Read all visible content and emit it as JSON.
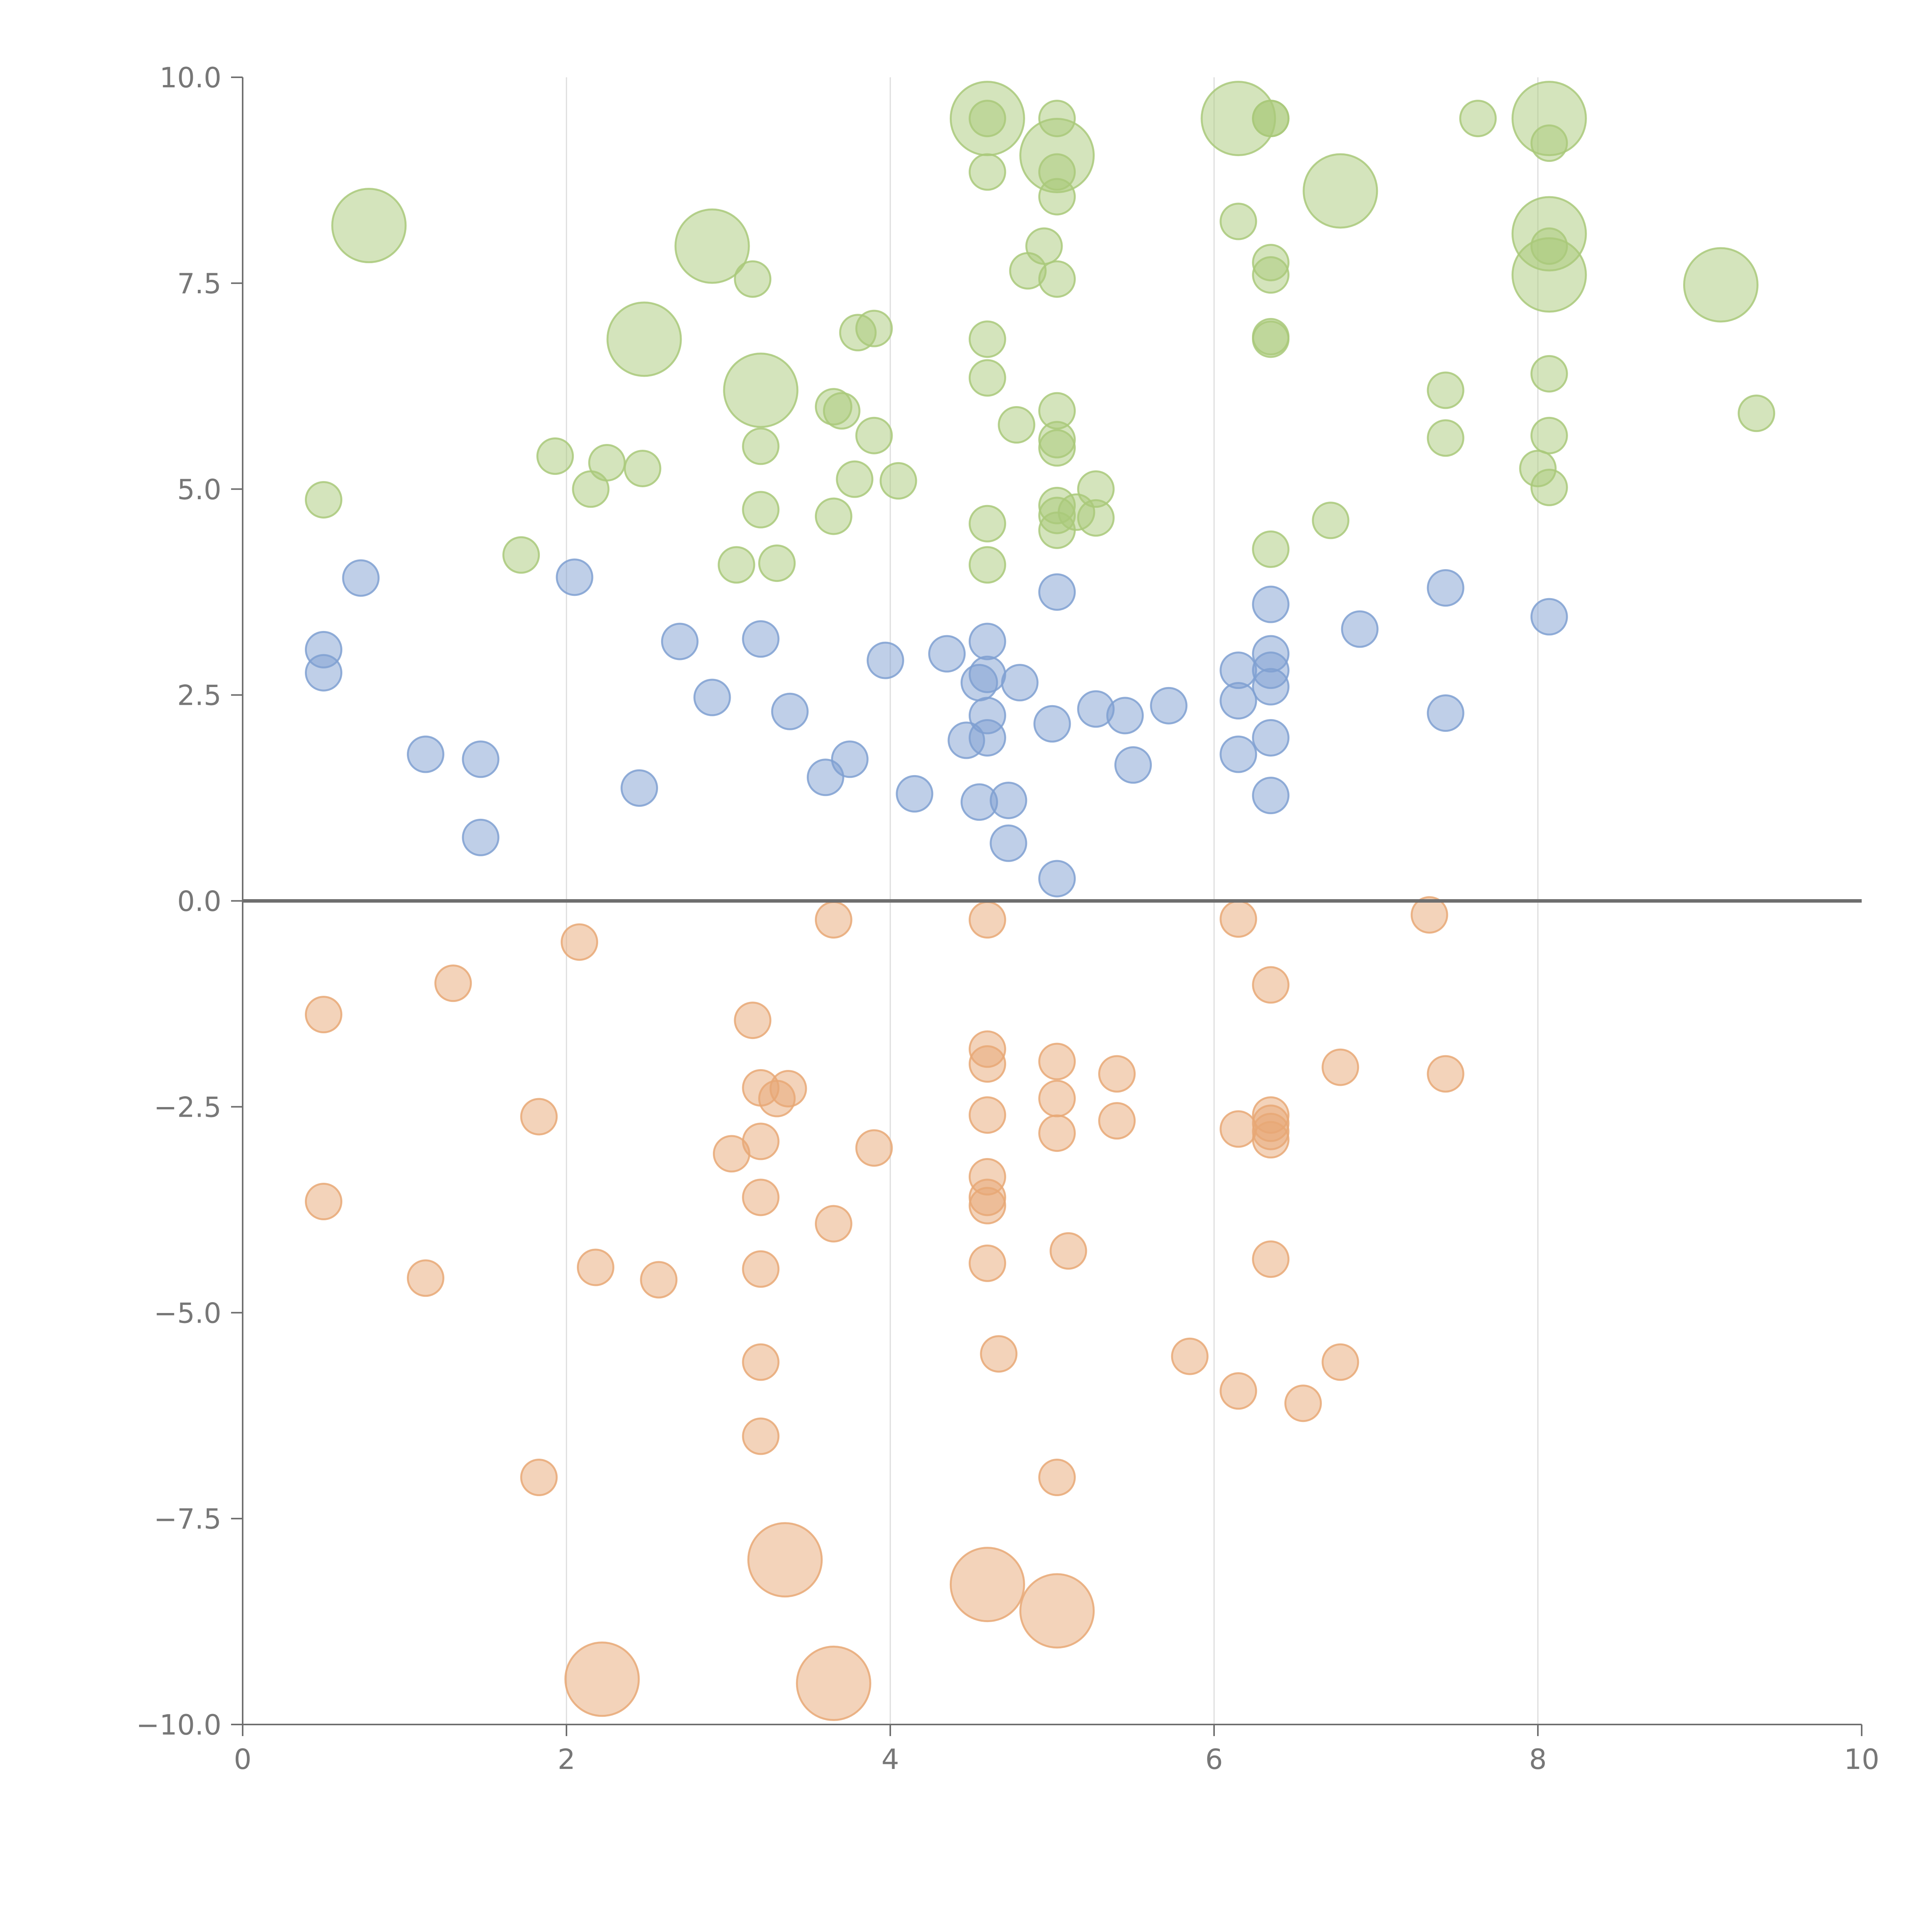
{
  "chart_data": {
    "type": "scatter",
    "title": "",
    "xlabel": "",
    "ylabel": "",
    "xlim": [
      0,
      10
    ],
    "ylim": [
      -10,
      10
    ],
    "x_ticks": [
      "0",
      "2",
      "4",
      "6",
      "8",
      "10"
    ],
    "y_ticks": [
      "10.0",
      "7.5",
      "5.0",
      "2.5",
      "0.0",
      "−2.5",
      "−5.0",
      "−7.5",
      "−10.0"
    ],
    "grid": "vertical",
    "legend": "none",
    "colors": {
      "top": "#a9c97a",
      "middle": "#7fa0d1",
      "bottom": "#e8a876",
      "axis": "#6e6e6e",
      "grid": "#dddddd"
    },
    "series": [
      {
        "group": "top",
        "points": [
          [
            0.78,
            8.2,
            "large"
          ],
          [
            2.9,
            7.95,
            "large"
          ],
          [
            2.48,
            6.82,
            "large"
          ],
          [
            3.2,
            6.2,
            "large"
          ],
          [
            4.6,
            9.5,
            "large"
          ],
          [
            5.03,
            9.05,
            "large"
          ],
          [
            6.15,
            9.5,
            "large"
          ],
          [
            6.78,
            8.62,
            "large"
          ],
          [
            8.07,
            9.5,
            "large"
          ],
          [
            8.07,
            8.1,
            "large"
          ],
          [
            8.07,
            7.6,
            "large"
          ],
          [
            9.13,
            7.48,
            "large"
          ],
          [
            4.6,
            9.5,
            "small"
          ],
          [
            5.03,
            9.5,
            "small"
          ],
          [
            6.35,
            9.5,
            "small"
          ],
          [
            6.35,
            9.5,
            "small"
          ],
          [
            7.63,
            9.5,
            "small"
          ],
          [
            8.07,
            9.2,
            "small"
          ],
          [
            4.6,
            8.85,
            "small"
          ],
          [
            5.03,
            8.85,
            "small"
          ],
          [
            5.03,
            8.55,
            "small"
          ],
          [
            6.15,
            8.25,
            "small"
          ],
          [
            4.95,
            7.95,
            "small"
          ],
          [
            4.85,
            7.65,
            "small"
          ],
          [
            5.03,
            7.55,
            "small"
          ],
          [
            3.15,
            7.55,
            "small"
          ],
          [
            6.35,
            7.75,
            "small"
          ],
          [
            6.35,
            7.6,
            "small"
          ],
          [
            8.07,
            7.95,
            "small"
          ],
          [
            3.8,
            6.9,
            "small"
          ],
          [
            3.9,
            6.95,
            "small"
          ],
          [
            4.6,
            6.82,
            "small"
          ],
          [
            6.35,
            6.85,
            "small"
          ],
          [
            6.35,
            6.82,
            "small"
          ],
          [
            4.6,
            6.35,
            "small"
          ],
          [
            8.07,
            6.4,
            "small"
          ],
          [
            3.65,
            6.0,
            "small"
          ],
          [
            3.7,
            5.95,
            "small"
          ],
          [
            5.03,
            5.95,
            "small"
          ],
          [
            7.43,
            6.2,
            "small"
          ],
          [
            9.35,
            5.92,
            "small"
          ],
          [
            3.2,
            5.52,
            "small"
          ],
          [
            3.9,
            5.65,
            "small"
          ],
          [
            4.78,
            5.78,
            "small"
          ],
          [
            5.03,
            5.6,
            "small"
          ],
          [
            5.03,
            5.5,
            "small"
          ],
          [
            7.43,
            5.62,
            "small"
          ],
          [
            8.07,
            5.65,
            "small"
          ],
          [
            1.93,
            5.4,
            "small"
          ],
          [
            2.25,
            5.32,
            "small"
          ],
          [
            2.47,
            5.25,
            "small"
          ],
          [
            3.78,
            5.12,
            "small"
          ],
          [
            4.05,
            5.1,
            "small"
          ],
          [
            2.15,
            5.0,
            "small"
          ],
          [
            0.5,
            4.87,
            "small"
          ],
          [
            5.27,
            5.0,
            "small"
          ],
          [
            8.0,
            5.25,
            "small"
          ],
          [
            8.07,
            5.02,
            "small"
          ],
          [
            3.2,
            4.75,
            "small"
          ],
          [
            3.65,
            4.67,
            "small"
          ],
          [
            4.6,
            4.58,
            "small"
          ],
          [
            5.03,
            4.8,
            "small"
          ],
          [
            5.03,
            4.68,
            "small"
          ],
          [
            5.03,
            4.5,
            "small"
          ],
          [
            5.15,
            4.72,
            "small"
          ],
          [
            5.27,
            4.65,
            "small"
          ],
          [
            6.72,
            4.62,
            "small"
          ],
          [
            1.72,
            4.2,
            "small"
          ],
          [
            3.05,
            4.08,
            "small"
          ],
          [
            3.3,
            4.1,
            "small"
          ],
          [
            4.6,
            4.08,
            "small"
          ],
          [
            6.35,
            4.27,
            "small"
          ]
        ]
      },
      {
        "group": "middle",
        "points": [
          [
            0.73,
            3.92,
            "small"
          ],
          [
            2.05,
            3.93,
            "small"
          ],
          [
            0.5,
            3.05,
            "small"
          ],
          [
            0.5,
            2.77,
            "small"
          ],
          [
            2.7,
            3.15,
            "small"
          ],
          [
            3.2,
            3.18,
            "small"
          ],
          [
            3.97,
            2.92,
            "small"
          ],
          [
            4.35,
            3.0,
            "small"
          ],
          [
            4.6,
            3.15,
            "small"
          ],
          [
            5.03,
            3.75,
            "small"
          ],
          [
            6.35,
            3.6,
            "small"
          ],
          [
            6.35,
            3.0,
            "small"
          ],
          [
            6.35,
            2.8,
            "small"
          ],
          [
            6.15,
            2.8,
            "small"
          ],
          [
            6.35,
            2.6,
            "small"
          ],
          [
            6.9,
            3.3,
            "small"
          ],
          [
            7.43,
            3.8,
            "small"
          ],
          [
            8.07,
            3.45,
            "small"
          ],
          [
            2.9,
            2.47,
            "small"
          ],
          [
            3.38,
            2.3,
            "small"
          ],
          [
            4.55,
            2.65,
            "small"
          ],
          [
            4.6,
            2.75,
            "small"
          ],
          [
            4.8,
            2.65,
            "small"
          ],
          [
            4.6,
            2.25,
            "small"
          ],
          [
            5.0,
            2.15,
            "small"
          ],
          [
            5.27,
            2.33,
            "small"
          ],
          [
            5.45,
            2.25,
            "small"
          ],
          [
            5.72,
            2.37,
            "small"
          ],
          [
            6.15,
            2.43,
            "small"
          ],
          [
            7.43,
            2.28,
            "small"
          ],
          [
            1.13,
            1.78,
            "small"
          ],
          [
            1.47,
            1.72,
            "small"
          ],
          [
            3.6,
            1.5,
            "small"
          ],
          [
            3.75,
            1.72,
            "small"
          ],
          [
            4.47,
            1.95,
            "small"
          ],
          [
            4.6,
            1.98,
            "small"
          ],
          [
            5.5,
            1.65,
            "small"
          ],
          [
            6.15,
            1.78,
            "small"
          ],
          [
            6.35,
            1.98,
            "small"
          ],
          [
            2.45,
            1.37,
            "small"
          ],
          [
            4.15,
            1.3,
            "small"
          ],
          [
            4.55,
            1.2,
            "small"
          ],
          [
            4.73,
            1.22,
            "small"
          ],
          [
            6.35,
            1.28,
            "small"
          ],
          [
            1.47,
            0.77,
            "small"
          ],
          [
            4.73,
            0.7,
            "small"
          ],
          [
            5.03,
            0.27,
            "small"
          ]
        ]
      },
      {
        "group": "bottom",
        "points": [
          [
            3.65,
            -0.23,
            "small"
          ],
          [
            4.6,
            -0.23,
            "small"
          ],
          [
            6.15,
            -0.22,
            "small"
          ],
          [
            7.33,
            -0.17,
            "small"
          ],
          [
            2.08,
            -0.5,
            "small"
          ],
          [
            1.3,
            -1.0,
            "small"
          ],
          [
            6.35,
            -1.02,
            "small"
          ],
          [
            0.5,
            -1.38,
            "small"
          ],
          [
            3.15,
            -1.45,
            "small"
          ],
          [
            4.6,
            -1.8,
            "small"
          ],
          [
            4.6,
            -1.98,
            "small"
          ],
          [
            5.03,
            -1.95,
            "small"
          ],
          [
            5.4,
            -2.1,
            "small"
          ],
          [
            6.78,
            -2.02,
            "small"
          ],
          [
            7.43,
            -2.1,
            "small"
          ],
          [
            3.2,
            -2.27,
            "small"
          ],
          [
            3.37,
            -2.28,
            "small"
          ],
          [
            3.3,
            -2.4,
            "small"
          ],
          [
            5.03,
            -2.4,
            "small"
          ],
          [
            1.83,
            -2.62,
            "small"
          ],
          [
            4.6,
            -2.6,
            "small"
          ],
          [
            5.4,
            -2.67,
            "small"
          ],
          [
            6.35,
            -2.6,
            "small"
          ],
          [
            6.35,
            -2.7,
            "small"
          ],
          [
            6.35,
            -2.8,
            "small"
          ],
          [
            6.35,
            -2.9,
            "small"
          ],
          [
            6.15,
            -2.77,
            "small"
          ],
          [
            5.03,
            -2.82,
            "small"
          ],
          [
            3.2,
            -2.92,
            "small"
          ],
          [
            3.02,
            -3.07,
            "small"
          ],
          [
            3.9,
            -3.0,
            "small"
          ],
          [
            4.6,
            -3.35,
            "small"
          ],
          [
            4.6,
            -3.6,
            "small"
          ],
          [
            4.6,
            -3.7,
            "small"
          ],
          [
            0.5,
            -3.65,
            "small"
          ],
          [
            3.2,
            -3.6,
            "small"
          ],
          [
            3.65,
            -3.92,
            "small"
          ],
          [
            5.1,
            -4.25,
            "small"
          ],
          [
            6.35,
            -4.35,
            "small"
          ],
          [
            2.18,
            -4.45,
            "small"
          ],
          [
            3.2,
            -4.47,
            "small"
          ],
          [
            4.6,
            -4.4,
            "small"
          ],
          [
            1.13,
            -4.58,
            "small"
          ],
          [
            2.57,
            -4.6,
            "small"
          ],
          [
            4.67,
            -5.5,
            "small"
          ],
          [
            5.85,
            -5.53,
            "small"
          ],
          [
            6.78,
            -5.6,
            "small"
          ],
          [
            3.2,
            -5.6,
            "small"
          ],
          [
            6.15,
            -5.95,
            "small"
          ],
          [
            6.55,
            -6.1,
            "small"
          ],
          [
            3.2,
            -6.5,
            "small"
          ],
          [
            1.83,
            -7.0,
            "small"
          ],
          [
            5.03,
            -7.0,
            "small"
          ],
          [
            3.35,
            -8.0,
            "large"
          ],
          [
            4.6,
            -8.3,
            "large"
          ],
          [
            5.03,
            -8.62,
            "large"
          ],
          [
            2.22,
            -9.45,
            "large"
          ],
          [
            3.65,
            -9.5,
            "large"
          ]
        ]
      }
    ]
  }
}
